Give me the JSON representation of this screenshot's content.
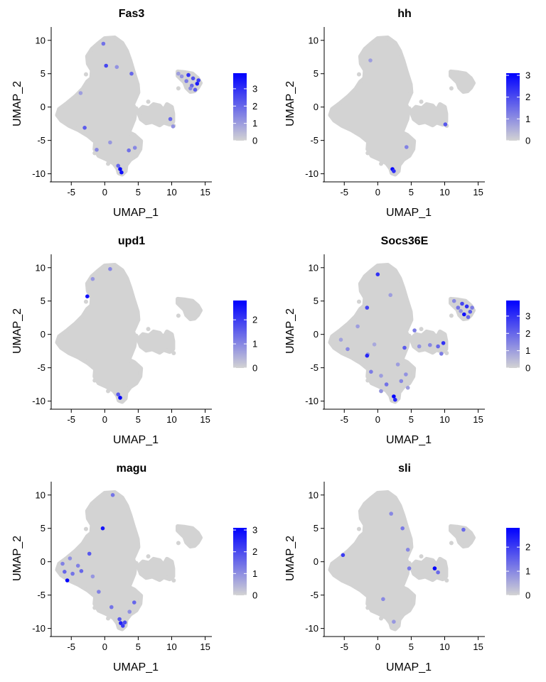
{
  "colors": {
    "low": "#d3d3d3",
    "high": "#0000ff",
    "axis": "#000000"
  },
  "chart_data": [
    {
      "type": "scatter",
      "title": "Fas3",
      "xlabel": "UMAP_1",
      "ylabel": "UMAP_2",
      "xlim": [
        -8,
        16
      ],
      "ylim": [
        -11,
        12
      ],
      "xticks": [
        -5,
        0,
        5,
        10,
        15
      ],
      "yticks": [
        -10,
        -5,
        0,
        5,
        10
      ],
      "legend": {
        "position": "right",
        "ticks": [
          0,
          1,
          2,
          3
        ],
        "max": 3.9
      },
      "expressing_points": [
        {
          "x": 12.5,
          "y": 4.8,
          "value": 3.0
        },
        {
          "x": 13.2,
          "y": 4.3,
          "value": 2.4
        },
        {
          "x": 13.8,
          "y": 3.5,
          "value": 3.4
        },
        {
          "x": 13.0,
          "y": 3.2,
          "value": 2.0
        },
        {
          "x": 12.2,
          "y": 3.9,
          "value": 1.6
        },
        {
          "x": 13.5,
          "y": 2.6,
          "value": 2.2
        },
        {
          "x": 12.8,
          "y": 2.8,
          "value": 1.4
        },
        {
          "x": 11.5,
          "y": 4.6,
          "value": 1.2
        },
        {
          "x": 14.0,
          "y": 4.0,
          "value": 2.8
        },
        {
          "x": 11.0,
          "y": 5.0,
          "value": 1.0
        },
        {
          "x": 0.2,
          "y": 6.2,
          "value": 2.6
        },
        {
          "x": 1.8,
          "y": 6.0,
          "value": 1.2
        },
        {
          "x": 4.0,
          "y": 5.0,
          "value": 2.0
        },
        {
          "x": -0.2,
          "y": 9.5,
          "value": 1.8
        },
        {
          "x": -3.0,
          "y": -3.1,
          "value": 2.2
        },
        {
          "x": -3.6,
          "y": 2.1,
          "value": 1.0
        },
        {
          "x": 2.3,
          "y": -9.3,
          "value": 3.9
        },
        {
          "x": 2.5,
          "y": -9.8,
          "value": 3.6
        },
        {
          "x": 2.0,
          "y": -8.8,
          "value": 2.0
        },
        {
          "x": -1.2,
          "y": -6.4,
          "value": 1.4
        },
        {
          "x": 3.6,
          "y": -6.5,
          "value": 1.8
        },
        {
          "x": 4.5,
          "y": -6.1,
          "value": 1.4
        },
        {
          "x": 9.8,
          "y": -1.8,
          "value": 2.0
        },
        {
          "x": 10.2,
          "y": -2.9,
          "value": 1.2
        },
        {
          "x": 0.8,
          "y": -5.3,
          "value": 1.1
        }
      ]
    },
    {
      "type": "scatter",
      "title": "hh",
      "xlabel": "UMAP_1",
      "ylabel": "UMAP_2",
      "xlim": [
        -8,
        16
      ],
      "ylim": [
        -11,
        12
      ],
      "xticks": [
        -5,
        0,
        5,
        10,
        15
      ],
      "yticks": [
        -10,
        -5,
        0,
        5,
        10
      ],
      "legend": {
        "position": "right",
        "ticks": [
          0,
          1,
          2,
          3
        ],
        "max": 3.1
      },
      "expressing_points": [
        {
          "x": 2.2,
          "y": -9.3,
          "value": 3.0
        },
        {
          "x": 2.4,
          "y": -9.6,
          "value": 2.4
        },
        {
          "x": 4.3,
          "y": -6.0,
          "value": 1.2
        },
        {
          "x": 10.1,
          "y": -2.6,
          "value": 1.8
        },
        {
          "x": -1.1,
          "y": 7.0,
          "value": 0.8
        }
      ]
    },
    {
      "type": "scatter",
      "title": "upd1",
      "xlabel": "UMAP_1",
      "ylabel": "UMAP_2",
      "xlim": [
        -8,
        16
      ],
      "ylim": [
        -11,
        12
      ],
      "xticks": [
        -5,
        0,
        5,
        10,
        15
      ],
      "yticks": [
        -10,
        -5,
        0,
        5,
        10
      ],
      "legend": {
        "position": "right",
        "ticks": [
          0,
          1,
          2
        ],
        "max": 2.8
      },
      "expressing_points": [
        {
          "x": -2.6,
          "y": 5.7,
          "value": 2.6
        },
        {
          "x": 2.3,
          "y": -9.5,
          "value": 2.8
        },
        {
          "x": 0.8,
          "y": 9.8,
          "value": 1.0
        },
        {
          "x": -1.8,
          "y": 8.3,
          "value": 0.8
        },
        {
          "x": 2.0,
          "y": -9.0,
          "value": 1.6
        }
      ]
    },
    {
      "type": "scatter",
      "title": "Socs36E",
      "xlabel": "UMAP_1",
      "ylabel": "UMAP_2",
      "xlim": [
        -8,
        16
      ],
      "ylim": [
        -11,
        12
      ],
      "xticks": [
        -5,
        0,
        5,
        10,
        15
      ],
      "yticks": [
        -10,
        -5,
        0,
        5,
        10
      ],
      "legend": {
        "position": "right",
        "ticks": [
          0,
          1,
          2,
          3
        ],
        "max": 3.9
      },
      "expressing_points": [
        {
          "x": 12.6,
          "y": 4.6,
          "value": 2.6
        },
        {
          "x": 13.3,
          "y": 4.2,
          "value": 3.0
        },
        {
          "x": 13.8,
          "y": 3.4,
          "value": 2.2
        },
        {
          "x": 12.9,
          "y": 3.0,
          "value": 3.6
        },
        {
          "x": 12.0,
          "y": 4.0,
          "value": 1.8
        },
        {
          "x": 13.5,
          "y": 2.6,
          "value": 2.0
        },
        {
          "x": 11.4,
          "y": 5.0,
          "value": 1.4
        },
        {
          "x": 14.1,
          "y": 4.0,
          "value": 1.6
        },
        {
          "x": 12.4,
          "y": 3.5,
          "value": 1.2
        },
        {
          "x": 0.0,
          "y": 9.0,
          "value": 3.0
        },
        {
          "x": -1.6,
          "y": 4.0,
          "value": 2.6
        },
        {
          "x": 1.9,
          "y": 5.9,
          "value": 1.0
        },
        {
          "x": -3.0,
          "y": 1.2,
          "value": 1.0
        },
        {
          "x": -4.5,
          "y": -2.2,
          "value": 1.4
        },
        {
          "x": -1.5,
          "y": -3.0,
          "value": 1.2
        },
        {
          "x": -1.0,
          "y": -5.6,
          "value": 1.6
        },
        {
          "x": 0.5,
          "y": -6.2,
          "value": 1.0
        },
        {
          "x": 1.3,
          "y": -7.5,
          "value": 1.8
        },
        {
          "x": 2.4,
          "y": -9.3,
          "value": 3.8
        },
        {
          "x": 2.6,
          "y": -9.8,
          "value": 3.2
        },
        {
          "x": 3.5,
          "y": -7.0,
          "value": 1.4
        },
        {
          "x": 4.2,
          "y": -6.0,
          "value": 1.2
        },
        {
          "x": -1.6,
          "y": -3.2,
          "value": 3.2
        },
        {
          "x": 4.0,
          "y": -2.0,
          "value": 2.2
        },
        {
          "x": 5.5,
          "y": 0.6,
          "value": 1.6
        },
        {
          "x": 6.2,
          "y": -1.8,
          "value": 1.2
        },
        {
          "x": 7.8,
          "y": -1.6,
          "value": 1.4
        },
        {
          "x": 9.0,
          "y": -1.8,
          "value": 2.0
        },
        {
          "x": 9.8,
          "y": -1.3,
          "value": 3.0
        },
        {
          "x": 9.5,
          "y": -2.9,
          "value": 1.6
        },
        {
          "x": -0.5,
          "y": -1.5,
          "value": 0.8
        },
        {
          "x": 3.0,
          "y": -4.5,
          "value": 1.0
        },
        {
          "x": 0.5,
          "y": -8.5,
          "value": 1.2
        },
        {
          "x": 4.5,
          "y": -8.0,
          "value": 1.0
        },
        {
          "x": -5.5,
          "y": -0.8,
          "value": 0.9
        }
      ]
    },
    {
      "type": "scatter",
      "title": "magu",
      "xlabel": "UMAP_1",
      "ylabel": "UMAP_2",
      "xlim": [
        -8,
        16
      ],
      "ylim": [
        -11,
        12
      ],
      "xticks": [
        -5,
        0,
        5,
        10,
        15
      ],
      "yticks": [
        -10,
        -5,
        0,
        5,
        10
      ],
      "legend": {
        "position": "right",
        "ticks": [
          0,
          1,
          2,
          3
        ],
        "max": 3.1
      },
      "expressing_points": [
        {
          "x": -5.6,
          "y": -2.8,
          "value": 3.1
        },
        {
          "x": -6.0,
          "y": -1.5,
          "value": 1.6
        },
        {
          "x": -6.3,
          "y": -0.3,
          "value": 1.2
        },
        {
          "x": -4.8,
          "y": -1.8,
          "value": 1.4
        },
        {
          "x": -5.2,
          "y": 0.5,
          "value": 1.0
        },
        {
          "x": -4.0,
          "y": -0.6,
          "value": 1.2
        },
        {
          "x": -3.5,
          "y": -1.4,
          "value": 1.6
        },
        {
          "x": -2.3,
          "y": 1.2,
          "value": 1.8
        },
        {
          "x": -0.3,
          "y": 5.0,
          "value": 2.8
        },
        {
          "x": 1.2,
          "y": 10.0,
          "value": 1.4
        },
        {
          "x": -0.9,
          "y": -4.5,
          "value": 1.2
        },
        {
          "x": 1.0,
          "y": -6.8,
          "value": 1.4
        },
        {
          "x": 2.4,
          "y": -9.2,
          "value": 2.6
        },
        {
          "x": 2.7,
          "y": -9.6,
          "value": 2.2
        },
        {
          "x": 2.2,
          "y": -8.6,
          "value": 1.8
        },
        {
          "x": 3.0,
          "y": -9.1,
          "value": 2.0
        },
        {
          "x": 3.7,
          "y": -7.5,
          "value": 1.0
        },
        {
          "x": 4.4,
          "y": -6.1,
          "value": 1.6
        },
        {
          "x": -1.8,
          "y": -2.2,
          "value": 0.9
        }
      ]
    },
    {
      "type": "scatter",
      "title": "sli",
      "xlabel": "UMAP_1",
      "ylabel": "UMAP_2",
      "xlim": [
        -8,
        16
      ],
      "ylim": [
        -11,
        12
      ],
      "xticks": [
        -5,
        0,
        5,
        10,
        15
      ],
      "yticks": [
        -10,
        -5,
        0,
        5,
        10
      ],
      "legend": {
        "position": "right",
        "ticks": [
          0,
          1,
          2
        ],
        "max": 2.8
      },
      "expressing_points": [
        {
          "x": 3.7,
          "y": 5.0,
          "value": 1.2
        },
        {
          "x": 4.5,
          "y": 1.8,
          "value": 1.0
        },
        {
          "x": 4.7,
          "y": -1.0,
          "value": 1.2
        },
        {
          "x": 8.5,
          "y": -1.0,
          "value": 2.8
        },
        {
          "x": 9.0,
          "y": -1.6,
          "value": 1.4
        },
        {
          "x": 12.8,
          "y": 4.8,
          "value": 1.4
        },
        {
          "x": -5.2,
          "y": 1.0,
          "value": 2.0
        },
        {
          "x": 0.8,
          "y": -5.6,
          "value": 1.0
        },
        {
          "x": 2.4,
          "y": -9.0,
          "value": 0.8
        },
        {
          "x": 2.0,
          "y": 7.2,
          "value": 1.0
        }
      ]
    }
  ]
}
